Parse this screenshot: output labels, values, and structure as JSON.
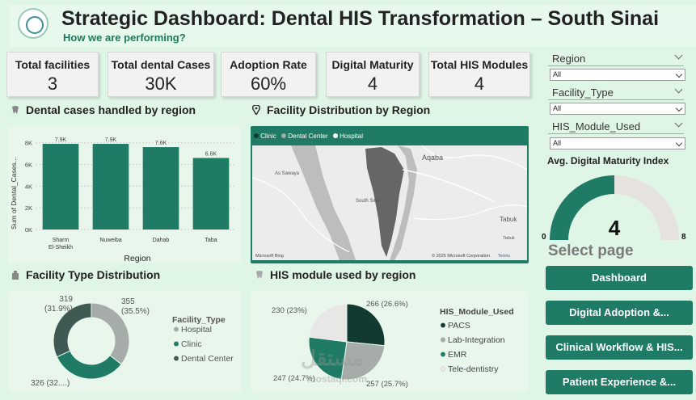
{
  "header": {
    "title": "Strategic Dashboard: Dental HIS Transformation – South Sinai",
    "subtitle": "How we are performing?"
  },
  "kpis": [
    {
      "label": "Total facilities",
      "value": "3"
    },
    {
      "label": "Total dental Cases",
      "value": "30K"
    },
    {
      "label": "Adoption Rate",
      "value": "60%"
    },
    {
      "label": "Digital Maturity",
      "value": "4"
    },
    {
      "label": "Total HIS Modules",
      "value": "4"
    }
  ],
  "sections": {
    "cases_by_region": "Dental cases handled by region",
    "facility_map": "Facility Distribution by Region",
    "facility_type": "Facility Type Distribution",
    "module_by_region": "HIS module used by region"
  },
  "filters": [
    {
      "label": "Region",
      "value": "All"
    },
    {
      "label": "Facility_Type",
      "value": "All"
    },
    {
      "label": "HIS_Module_Used",
      "value": "All"
    }
  ],
  "gauge": {
    "title": "Avg. Digital Maturity Index",
    "value": 4,
    "min": 0,
    "max": 8,
    "value_label": "4",
    "min_label": "0",
    "max_label": "8",
    "fill_color": "#1f7a66",
    "track_color": "#e6e2df"
  },
  "nav": {
    "title": "Select page",
    "buttons": [
      "Dashboard",
      "Digital Adoption &...",
      "Clinical Workflow & HIS...",
      "Patient Experience &..."
    ]
  },
  "map": {
    "legend": [
      "Clinic",
      "Dental Center",
      "Hospital"
    ],
    "places": [
      "Aqaba",
      "As Sawaya",
      "South Sinai",
      "Tabuk",
      "Tabuk"
    ],
    "copyright": "© 2025 Microsoft Corporation",
    "terms": "Terms",
    "bing": "Microsoft Bing"
  },
  "watermark": {
    "arabic": "مستقل",
    "latin": "mostaql.com"
  },
  "chart_data": [
    {
      "type": "bar",
      "categories": [
        "Sharm El-Sheikh",
        "Nuweiba",
        "Dahab",
        "Taba"
      ],
      "category_lines": [
        [
          "Sharm",
          "El-Sheikh"
        ],
        [
          "Nuweiba"
        ],
        [
          "Dahab"
        ],
        [
          "Taba"
        ]
      ],
      "values": [
        7900,
        7900,
        7600,
        6600
      ],
      "data_labels": [
        "7.9K",
        "7.9K",
        "7.6K",
        "6.6K"
      ],
      "xlabel": "Region",
      "ylabel": "Sum of Dental_Cases...",
      "ylim": [
        0,
        8500
      ],
      "yticks": [
        0,
        2000,
        4000,
        6000,
        8000
      ],
      "ytick_labels": [
        "0K",
        "2K",
        "4K",
        "6K",
        "8K"
      ],
      "color": "#1f7a66"
    },
    {
      "type": "pie",
      "donut": true,
      "legend_title": "Facility_Type",
      "labels": [
        "Hospital",
        "Clinic",
        "Dental Center"
      ],
      "values": [
        355,
        326,
        319
      ],
      "data_labels": [
        [
          "355",
          "(35.5%)"
        ],
        [
          "326 (32....)"
        ],
        [
          "319",
          "(31.9%)"
        ]
      ],
      "colors": [
        "#a5aca9",
        "#1f7a66",
        "#3f5a52"
      ]
    },
    {
      "type": "pie",
      "legend_title": "HIS_Module_Used",
      "labels": [
        "PACS",
        "Lab-Integration",
        "EMR",
        "Tele-dentistry"
      ],
      "values": [
        266,
        257,
        247,
        230
      ],
      "data_labels": [
        "266 (26.6%)",
        "257 (25.7%)",
        "247 (24.7%)",
        "230 (23%)"
      ],
      "colors": [
        "#123a30",
        "#a5aca9",
        "#1f7a66",
        "#e9e6e6"
      ]
    }
  ]
}
